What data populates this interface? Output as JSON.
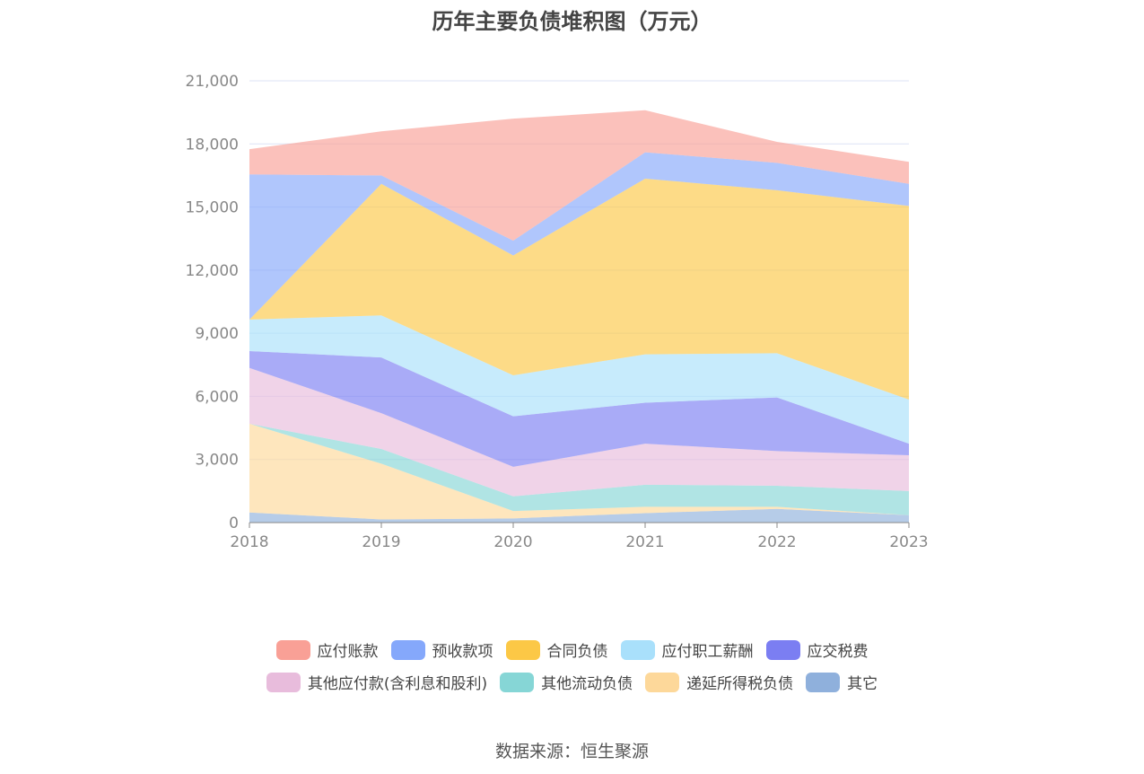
{
  "chart_data": {
    "type": "area",
    "stacked": true,
    "title": "历年主要负债堆积图（万元）",
    "x": [
      "2018",
      "2019",
      "2020",
      "2021",
      "2022",
      "2023"
    ],
    "ylim": [
      0,
      21000
    ],
    "yticks": [
      "0",
      "3,000",
      "6,000",
      "9,000",
      "12,000",
      "15,000",
      "18,000",
      "21,000"
    ],
    "grid": true,
    "legend_position": "bottom",
    "series": [
      {
        "name": "其它",
        "color": "#8fb0dc",
        "values": [
          480,
          150,
          200,
          450,
          650,
          350
        ]
      },
      {
        "name": "递延所得税负债",
        "color": "#fdd89a",
        "values": [
          4220,
          2650,
          350,
          300,
          100,
          0
        ]
      },
      {
        "name": "其他流动负债",
        "color": "#86d6d6",
        "values": [
          0,
          700,
          700,
          1050,
          1000,
          1150
        ]
      },
      {
        "name": "其他应付款(含利息和股利)",
        "color": "#e8bcdc",
        "values": [
          2650,
          1700,
          1400,
          1950,
          1650,
          1700
        ]
      },
      {
        "name": "应交税费",
        "color": "#7b7ef2",
        "values": [
          800,
          2650,
          2400,
          1950,
          2550,
          550
        ]
      },
      {
        "name": "应付职工薪酬",
        "color": "#a9e0fb",
        "values": [
          1500,
          2000,
          1950,
          2300,
          2100,
          2100
        ]
      },
      {
        "name": "合同负债",
        "color": "#fcc846",
        "values": [
          0,
          6250,
          5700,
          8350,
          7750,
          9200
        ]
      },
      {
        "name": "预收款项",
        "color": "#85a8fb",
        "values": [
          6900,
          400,
          700,
          1250,
          1300,
          1050
        ]
      },
      {
        "name": "应付账款",
        "color": "#f9a096",
        "values": [
          1200,
          2100,
          5800,
          2000,
          1000,
          1050
        ]
      }
    ]
  },
  "legend": [
    {
      "label": "应付账款",
      "color": "#f9a096"
    },
    {
      "label": "预收款项",
      "color": "#85a8fb"
    },
    {
      "label": "合同负债",
      "color": "#fcc846"
    },
    {
      "label": "应付职工薪酬",
      "color": "#a9e0fb"
    },
    {
      "label": "应交税费",
      "color": "#7b7ef2"
    },
    {
      "label": "其他应付款(含利息和股利)",
      "color": "#e8bcdc"
    },
    {
      "label": "其他流动负债",
      "color": "#86d6d6"
    },
    {
      "label": "递延所得税负债",
      "color": "#fdd89a"
    },
    {
      "label": "其它",
      "color": "#8fb0dc"
    }
  ],
  "source": "数据来源：恒生聚源"
}
